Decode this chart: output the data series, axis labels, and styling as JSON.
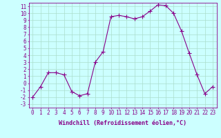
{
  "x": [
    0,
    1,
    2,
    3,
    4,
    5,
    6,
    7,
    8,
    9,
    10,
    11,
    12,
    13,
    14,
    15,
    16,
    17,
    18,
    19,
    20,
    21,
    22,
    23
  ],
  "y": [
    -2,
    -0.5,
    1.5,
    1.5,
    1.2,
    -1.2,
    -1.8,
    -1.5,
    3.0,
    4.5,
    9.5,
    9.7,
    9.5,
    9.2,
    9.5,
    10.3,
    11.2,
    11.1,
    10.0,
    7.5,
    4.3,
    1.2,
    -1.5,
    -0.5
  ],
  "line_color": "#880088",
  "marker": "+",
  "marker_size": 4,
  "bg_color": "#ccffff",
  "grid_color": "#aaddcc",
  "xlabel": "Windchill (Refroidissement éolien,°C)",
  "xlim": [
    -0.5,
    23.5
  ],
  "ylim": [
    -3.5,
    11.5
  ],
  "yticks": [
    11,
    10,
    9,
    8,
    7,
    6,
    5,
    4,
    3,
    2,
    1,
    0,
    -1,
    -2,
    -3
  ],
  "xticks": [
    0,
    1,
    2,
    3,
    4,
    5,
    6,
    7,
    8,
    9,
    10,
    11,
    12,
    13,
    14,
    15,
    16,
    17,
    18,
    19,
    20,
    21,
    22,
    23
  ],
  "label_fontsize": 6,
  "tick_fontsize": 5.5
}
